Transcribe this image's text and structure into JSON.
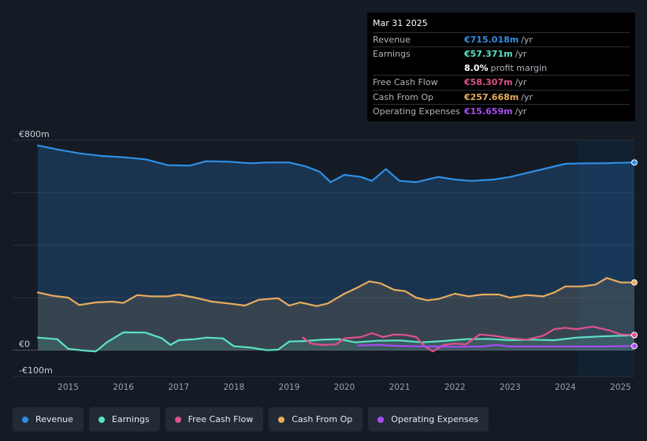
{
  "tooltip": {
    "date": "Mar 31 2025",
    "rows": [
      {
        "label": "Revenue",
        "value": "€715.018m",
        "unit": "/yr",
        "color": "#2f8fe6"
      },
      {
        "label": "Earnings",
        "value": "€57.371m",
        "unit": "/yr",
        "color": "#5de2c6"
      },
      {
        "label": "",
        "value": "8.0%",
        "unit": "profit margin",
        "color": "#ffffff"
      },
      {
        "label": "Free Cash Flow",
        "value": "€58.307m",
        "unit": "/yr",
        "color": "#e0528a"
      },
      {
        "label": "Cash From Op",
        "value": "€257.668m",
        "unit": "/yr",
        "color": "#e8ac5e"
      },
      {
        "label": "Operating Expenses",
        "value": "€15.659m",
        "unit": "/yr",
        "color": "#a84cf2"
      }
    ]
  },
  "legend": [
    {
      "label": "Revenue",
      "color": "#2f8fe6"
    },
    {
      "label": "Earnings",
      "color": "#5de2c6"
    },
    {
      "label": "Free Cash Flow",
      "color": "#e0528a"
    },
    {
      "label": "Cash From Op",
      "color": "#e8ac5e"
    },
    {
      "label": "Operating Expenses",
      "color": "#a84cf2"
    }
  ],
  "chart_data": {
    "type": "area",
    "title": "",
    "xlabel": "",
    "ylabel": "",
    "y_unit": "€m",
    "ylim": [
      -100,
      800
    ],
    "y_tick_labels": [
      {
        "value": 800,
        "label": "€800m"
      },
      {
        "value": 0,
        "label": "€0"
      },
      {
        "value": -100,
        "label": "-€100m"
      }
    ],
    "x_range": [
      2014.45,
      2025.25
    ],
    "x_ticks": [
      2015,
      2016,
      2017,
      2018,
      2019,
      2020,
      2021,
      2022,
      2023,
      2024,
      2025
    ],
    "x_tick_labels": [
      "2015",
      "2016",
      "2017",
      "2018",
      "2019",
      "2020",
      "2021",
      "2022",
      "2023",
      "2024",
      "2025"
    ],
    "forecast_shade_from": 2024.25,
    "series": [
      {
        "name": "Revenue",
        "color": "#2f8fe6",
        "fill": true,
        "x": [
          2014.45,
          2014.8,
          2015.2,
          2015.6,
          2016.0,
          2016.4,
          2016.8,
          2017.2,
          2017.5,
          2017.9,
          2018.3,
          2018.6,
          2019.0,
          2019.3,
          2019.55,
          2019.75,
          2020.0,
          2020.3,
          2020.5,
          2020.75,
          2021.0,
          2021.3,
          2021.7,
          2022.0,
          2022.3,
          2022.7,
          2023.0,
          2023.3,
          2023.7,
          2024.0,
          2024.4,
          2024.7,
          2025.0,
          2025.25
        ],
        "values": [
          780,
          765,
          750,
          740,
          735,
          727,
          705,
          703,
          720,
          718,
          712,
          715,
          715,
          700,
          680,
          640,
          668,
          660,
          645,
          690,
          645,
          640,
          660,
          650,
          645,
          650,
          660,
          675,
          695,
          710,
          712,
          712,
          714,
          715
        ]
      },
      {
        "name": "Earnings",
        "color": "#5de2c6",
        "fill": true,
        "x": [
          2014.45,
          2014.8,
          2015.0,
          2015.3,
          2015.5,
          2015.7,
          2016.0,
          2016.4,
          2016.7,
          2016.85,
          2017.0,
          2017.3,
          2017.5,
          2017.8,
          2018.0,
          2018.3,
          2018.6,
          2018.8,
          2019.0,
          2019.3,
          2019.6,
          2019.9,
          2020.2,
          2020.6,
          2021.0,
          2021.4,
          2021.8,
          2022.2,
          2022.6,
          2023.0,
          2023.4,
          2023.8,
          2024.2,
          2024.6,
          2025.0,
          2025.25
        ],
        "values": [
          48,
          42,
          5,
          -2,
          -5,
          30,
          68,
          67,
          45,
          20,
          38,
          42,
          48,
          45,
          15,
          10,
          0,
          2,
          33,
          35,
          40,
          42,
          30,
          36,
          37,
          30,
          35,
          42,
          43,
          38,
          40,
          38,
          48,
          52,
          55,
          57
        ]
      },
      {
        "name": "Free Cash Flow",
        "color": "#e0528a",
        "fill": false,
        "x": [
          2019.25,
          2019.4,
          2019.6,
          2019.85,
          2020.0,
          2020.3,
          2020.5,
          2020.7,
          2020.9,
          2021.1,
          2021.3,
          2021.45,
          2021.6,
          2021.8,
          2022.0,
          2022.2,
          2022.45,
          2022.7,
          2023.0,
          2023.3,
          2023.6,
          2023.8,
          2024.0,
          2024.2,
          2024.5,
          2024.8,
          2025.0,
          2025.25
        ],
        "values": [
          48,
          25,
          20,
          22,
          45,
          50,
          65,
          50,
          60,
          58,
          50,
          15,
          -5,
          20,
          25,
          22,
          60,
          55,
          45,
          40,
          55,
          80,
          85,
          80,
          90,
          75,
          60,
          58
        ]
      },
      {
        "name": "Cash From Op",
        "color": "#e8ac5e",
        "fill": true,
        "x": [
          2014.45,
          2014.7,
          2015.0,
          2015.2,
          2015.5,
          2015.8,
          2016.0,
          2016.25,
          2016.5,
          2016.8,
          2017.0,
          2017.3,
          2017.6,
          2017.9,
          2018.2,
          2018.45,
          2018.8,
          2019.0,
          2019.2,
          2019.5,
          2019.7,
          2020.0,
          2020.25,
          2020.45,
          2020.65,
          2020.9,
          2021.1,
          2021.3,
          2021.5,
          2021.7,
          2022.0,
          2022.25,
          2022.5,
          2022.8,
          2023.0,
          2023.3,
          2023.6,
          2023.8,
          2024.0,
          2024.3,
          2024.55,
          2024.75,
          2025.0,
          2025.25
        ],
        "values": [
          220,
          208,
          200,
          172,
          182,
          185,
          180,
          210,
          205,
          205,
          212,
          200,
          185,
          178,
          170,
          192,
          198,
          170,
          182,
          168,
          178,
          215,
          240,
          262,
          255,
          230,
          225,
          200,
          190,
          195,
          215,
          205,
          212,
          212,
          200,
          210,
          205,
          220,
          243,
          243,
          250,
          275,
          258,
          258
        ]
      },
      {
        "name": "Operating Expenses",
        "color": "#a84cf2",
        "fill": false,
        "x": [
          2020.25,
          2020.6,
          2021.0,
          2021.5,
          2022.0,
          2022.5,
          2022.75,
          2023.0,
          2023.5,
          2024.0,
          2024.5,
          2025.0,
          2025.25
        ],
        "values": [
          18,
          20,
          16,
          14,
          13,
          14,
          20,
          14,
          14,
          14,
          14,
          15,
          15.7
        ]
      }
    ]
  }
}
